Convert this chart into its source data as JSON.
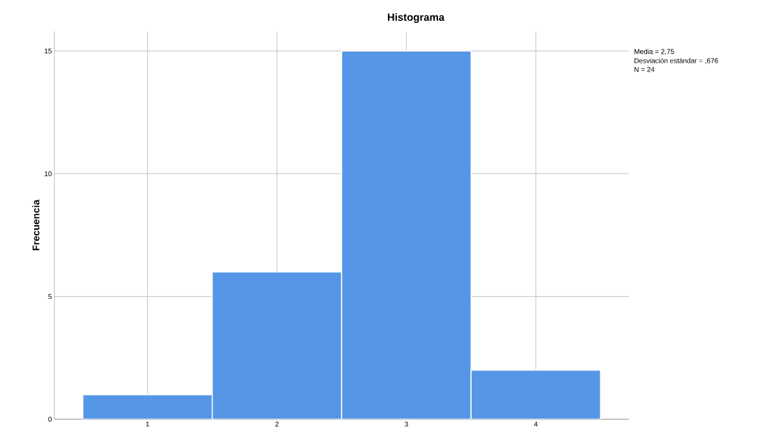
{
  "chart_data": {
    "type": "histogram",
    "title": "Histograma",
    "ylabel": "Frecuencia",
    "bins": [
      0.5,
      1.5,
      2.5,
      3.5,
      4.5
    ],
    "values": [
      1,
      6,
      15,
      2
    ],
    "color": "#5596e6",
    "xlim": [
      0.28,
      4.72
    ],
    "xticks": [
      1,
      2,
      3,
      4
    ],
    "ylim": [
      0,
      15.8
    ],
    "yticks": [
      0,
      5,
      10,
      15
    ],
    "grid": true,
    "annotations": [
      "Media = 2,75",
      "Desviación estándar = ,676",
      "N = 24"
    ]
  }
}
